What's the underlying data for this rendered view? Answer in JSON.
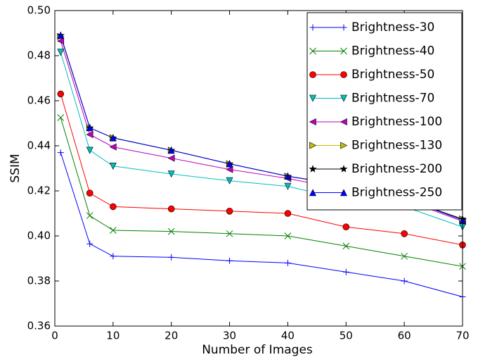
{
  "chart_data": {
    "type": "line",
    "xlabel": "Number of Images",
    "ylabel": "SSIM",
    "x": [
      1,
      6,
      10,
      20,
      30,
      40,
      50,
      60,
      70
    ],
    "series": [
      {
        "name": "Brightness-30",
        "color": "#0000ff",
        "marker": "+",
        "values": [
          0.437,
          0.3965,
          0.391,
          0.3905,
          0.389,
          0.388,
          0.384,
          0.38,
          0.373
        ]
      },
      {
        "name": "Brightness-40",
        "color": "#008000",
        "marker": "x",
        "values": [
          0.4525,
          0.409,
          0.4025,
          0.402,
          0.401,
          0.4,
          0.3955,
          0.391,
          0.3865
        ]
      },
      {
        "name": "Brightness-50",
        "color": "#ff0000",
        "marker": "o",
        "values": [
          0.463,
          0.419,
          0.413,
          0.412,
          0.411,
          0.41,
          0.404,
          0.401,
          0.396
        ]
      },
      {
        "name": "Brightness-70",
        "color": "#00bfbf",
        "marker": "v",
        "values": [
          0.4815,
          0.438,
          0.431,
          0.4275,
          0.4245,
          0.422,
          0.416,
          0.413,
          0.404
        ]
      },
      {
        "name": "Brightness-100",
        "color": "#bf00bf",
        "marker": "<",
        "values": [
          0.4865,
          0.445,
          0.4395,
          0.4345,
          0.4295,
          0.4255,
          0.4205,
          0.416,
          0.4065
        ]
      },
      {
        "name": "Brightness-130",
        "color": "#bfbf00",
        "marker": ">",
        "values": [
          0.4885,
          0.448,
          0.4435,
          0.438,
          0.432,
          0.4265,
          0.422,
          0.4165,
          0.4075
        ]
      },
      {
        "name": "Brightness-200",
        "color": "#000000",
        "marker": "*",
        "values": [
          0.489,
          0.448,
          0.4435,
          0.438,
          0.432,
          0.4265,
          0.4225,
          0.4165,
          0.4075
        ]
      },
      {
        "name": "Brightness-250",
        "color": "#0000ff",
        "marker": "^",
        "values": [
          0.489,
          0.448,
          0.4435,
          0.438,
          0.432,
          0.4265,
          0.4225,
          0.4165,
          0.407
        ]
      }
    ],
    "xlim": [
      0,
      70
    ],
    "xticks": [
      0,
      10,
      20,
      30,
      40,
      50,
      60,
      70
    ],
    "ylim": [
      0.36,
      0.5
    ],
    "yticks": [
      0.36,
      0.38,
      {
        "value": 0.4,
        "label": "0.40"
      },
      0.42,
      0.44,
      0.46,
      0.48,
      {
        "value": 0.5,
        "label": "0.50"
      }
    ],
    "grid": false,
    "legend": "upper right"
  }
}
